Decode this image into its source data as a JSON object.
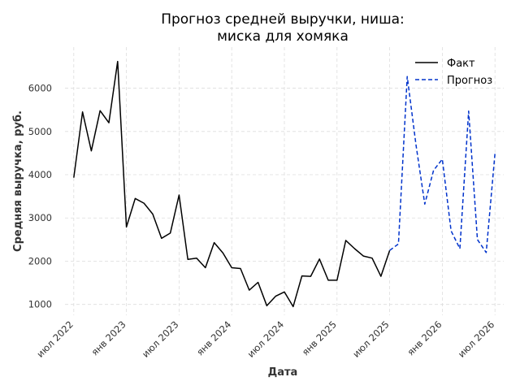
{
  "chart_data": {
    "type": "line",
    "title": [
      "Прогноз средней выручки, ниша:",
      "миска для хомяка"
    ],
    "xlabel": "Дата",
    "ylabel": "Средняя выручка, руб.",
    "grid": true,
    "legend_position": "top-right",
    "x_range": [
      "2022-06",
      "2026-08"
    ],
    "ylim": [
      750,
      6950
    ],
    "yticks": [
      1000,
      2000,
      3000,
      4000,
      5000,
      6000
    ],
    "xticks": [
      {
        "date": "2022-07",
        "label": "июл 2022"
      },
      {
        "date": "2023-01",
        "label": "янв 2023"
      },
      {
        "date": "2023-07",
        "label": "июл 2023"
      },
      {
        "date": "2024-01",
        "label": "янв 2024"
      },
      {
        "date": "2024-07",
        "label": "июл 2024"
      },
      {
        "date": "2025-01",
        "label": "янв 2025"
      },
      {
        "date": "2025-07",
        "label": "июл 2025"
      },
      {
        "date": "2026-01",
        "label": "янв 2026"
      },
      {
        "date": "2026-07",
        "label": "июл 2026"
      }
    ],
    "series": [
      {
        "name": "Факт",
        "color": "#000000",
        "style": "solid",
        "x": [
          "2022-07",
          "2022-08",
          "2022-09",
          "2022-10",
          "2022-11",
          "2022-12",
          "2023-01",
          "2023-02",
          "2023-03",
          "2023-04",
          "2023-05",
          "2023-06",
          "2023-07",
          "2023-08",
          "2023-09",
          "2023-10",
          "2023-11",
          "2023-12",
          "2024-01",
          "2024-02",
          "2024-03",
          "2024-04",
          "2024-05",
          "2024-06",
          "2024-07",
          "2024-08",
          "2024-09",
          "2024-10",
          "2024-11",
          "2024-12",
          "2025-01",
          "2025-02",
          "2025-03",
          "2025-04",
          "2025-05",
          "2025-06",
          "2025-07"
        ],
        "y": [
          3930,
          5450,
          4550,
          5480,
          5200,
          6620,
          2790,
          3450,
          3340,
          3090,
          2530,
          2650,
          3530,
          2040,
          2070,
          1850,
          2430,
          2190,
          1850,
          1830,
          1330,
          1510,
          970,
          1190,
          1290,
          950,
          1660,
          1650,
          2050,
          1560,
          1560,
          2480,
          2290,
          2120,
          2070,
          1650,
          2250
        ]
      },
      {
        "name": "Прогноз",
        "color": "#0033cc",
        "style": "dashed",
        "x": [
          "2025-07",
          "2025-08",
          "2025-09",
          "2025-10",
          "2025-11",
          "2025-12",
          "2026-01",
          "2026-02",
          "2026-03",
          "2026-04",
          "2026-05",
          "2026-06",
          "2026-07"
        ],
        "y": [
          2250,
          2400,
          6270,
          4690,
          3320,
          4100,
          4360,
          2700,
          2290,
          5470,
          2500,
          2200,
          4490
        ]
      }
    ]
  }
}
